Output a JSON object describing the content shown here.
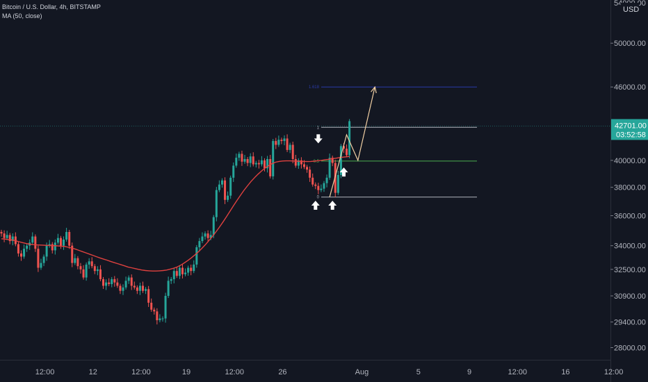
{
  "legend": {
    "symbol": "Bitcoin / U.S. Dollar, 4h, BITSTAMP",
    "indicator": "MA (50, close)"
  },
  "currency": "USD",
  "colors": {
    "background": "#131722",
    "up": "#26a69a",
    "down": "#ef5350",
    "ma": "#e0413f",
    "fib_target": "#2b3aa8",
    "fib_mid": "#4caf50",
    "fib_level": "#b2b5be",
    "projection": "#f2d0a4",
    "price_tag": "#26a69a"
  },
  "chart_data": {
    "type": "candlestick",
    "title": "Bitcoin / U.S. Dollar, 4h, BITSTAMP",
    "y_axis": {
      "scale": "log",
      "range": [
        27000,
        54000
      ],
      "ticks": [
        28000,
        29400,
        30900,
        32500,
        34000,
        36000,
        38000,
        40000,
        46000,
        50000
      ],
      "tick_labels": [
        "28000.00",
        "29400.00",
        "30900.00",
        "32500.00",
        "34000.00",
        "36000.00",
        "38000.00",
        "40000.00",
        "46000.00",
        "50000.00"
      ],
      "top_partial_label": "54000.00"
    },
    "x_axis": {
      "tick_labels": [
        "12:00",
        "12",
        "12:00",
        "19",
        "12:00",
        "26",
        "Aug",
        "5",
        "9",
        "12:00",
        "16",
        "12:00"
      ],
      "tick_index": [
        8,
        25,
        42,
        58,
        75,
        92,
        120,
        140,
        158,
        175,
        192,
        209
      ]
    },
    "last_price": {
      "value": 42701.0,
      "label": "42701.00",
      "countdown": "03:52:58"
    },
    "closes": [
      34800,
      34500,
      34700,
      34300,
      34600,
      34100,
      33500,
      33300,
      33800,
      34000,
      34200,
      34600,
      33800,
      32600,
      32900,
      33300,
      34000,
      34100,
      33700,
      34200,
      34500,
      34000,
      34400,
      34900,
      34000,
      32900,
      33200,
      32700,
      32500,
      32000,
      32800,
      33000,
      32700,
      32400,
      32500,
      31900,
      31500,
      31700,
      31600,
      31900,
      31700,
      31500,
      31200,
      31400,
      31800,
      32000,
      31500,
      31400,
      31200,
      31500,
      31200,
      31300,
      30500,
      30100,
      30000,
      29500,
      29600,
      29600,
      30900,
      31800,
      31900,
      32400,
      32100,
      32600,
      32200,
      32300,
      32600,
      32400,
      32800,
      33900,
      34300,
      34600,
      34800,
      34500,
      34700,
      35900,
      37800,
      38200,
      38500,
      37100,
      37400,
      38700,
      39600,
      40200,
      40500,
      39900,
      40100,
      39800,
      40300,
      39700,
      39800,
      39700,
      40000,
      39400,
      40100,
      38800,
      41500,
      41200,
      41600,
      41500,
      41700,
      40800,
      41200,
      40100,
      39600,
      40000,
      39700,
      39500,
      39300,
      38700,
      38200,
      38100,
      37800,
      37900,
      38300,
      38700,
      40200,
      39800,
      37600,
      38900,
      41100,
      40900,
      40400,
      43100
    ],
    "ma50": [
      34450,
      34430,
      34400,
      34370,
      34320,
      34260,
      34200,
      34140,
      34100,
      34070,
      34050,
      34040,
      34030,
      34020,
      34010,
      34000,
      33990,
      33970,
      33950,
      33900,
      33850,
      33780,
      33700,
      33620,
      33540,
      33460,
      33380,
      33300,
      33220,
      33150,
      33080,
      33000,
      32930,
      32860,
      32790,
      32720,
      32650,
      32600,
      32550,
      32500,
      32460,
      32430,
      32410,
      32400,
      32400,
      32410,
      32430,
      32460,
      32510,
      32570,
      32650,
      32760,
      32900,
      33050,
      33220,
      33400,
      33600,
      33820,
      34060,
      34320,
      34600,
      34900,
      35220,
      35560,
      35920,
      36300,
      36680,
      37060,
      37430,
      37780,
      38110,
      38420,
      38700,
      38960,
      39200,
      39420,
      39600,
      39750,
      39860,
      39920,
      39950,
      39960,
      39960,
      39950,
      39940,
      39930,
      39920,
      39910,
      39920,
      39940,
      39970,
      40000,
      40040,
      40080,
      40120,
      40160,
      40200,
      40240,
      40270,
      40300
    ],
    "fib": [
      {
        "label": "1.618",
        "value": 46000
      },
      {
        "label": "1",
        "value": 42600
      },
      {
        "label": "0.5",
        "value": 39950
      },
      {
        "label": "0",
        "value": 37300
      }
    ],
    "projection_path": [
      [
        116,
        37300
      ],
      [
        122,
        42000
      ],
      [
        126,
        40000
      ],
      [
        132,
        46000
      ]
    ],
    "arrows": [
      {
        "dir": "down",
        "index": 112,
        "value": 41700
      },
      {
        "dir": "up",
        "index": 111,
        "value": 36700
      },
      {
        "dir": "up",
        "index": 117,
        "value": 36700
      },
      {
        "dir": "up",
        "index": 121,
        "value": 39100
      }
    ]
  }
}
